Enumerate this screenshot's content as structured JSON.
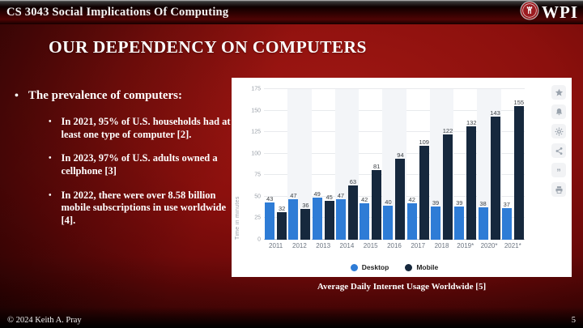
{
  "header": {
    "course_title": "CS 3043 Social Implications Of Computing",
    "logo_text": "WPI"
  },
  "slide": {
    "title": "OUR DEPENDENCY ON COMPUTERS",
    "bullets": {
      "main": "The prevalence of computers:",
      "sub": [
        "In 2021, 95% of U.S. households had at least one type of computer [2].",
        "In 2023, 97% of U.S. adults owned a cellphone [3]",
        "In 2022, there were over 8.58 billion mobile subscriptions in use worldwide [4]."
      ]
    },
    "chart_caption": "Average Daily Internet Usage Worldwide [5]"
  },
  "footer": {
    "copyright": "© 2024 Keith A. Pray",
    "page_number": "5"
  },
  "chart_data": {
    "type": "bar",
    "title": "",
    "xlabel": "",
    "ylabel": "Time in minutes",
    "categories": [
      "2011",
      "2012",
      "2013",
      "2014",
      "2015",
      "2016",
      "2017",
      "2018",
      "2019*",
      "2020*",
      "2021*"
    ],
    "series": [
      {
        "name": "Desktop",
        "color": "#2e7cd6",
        "values": [
          43,
          47,
          49,
          47,
          42,
          40,
          42,
          39,
          39,
          38,
          37
        ]
      },
      {
        "name": "Mobile",
        "color": "#16283d",
        "values": [
          32,
          36,
          45,
          63,
          81,
          94,
          109,
          122,
          132,
          143,
          155
        ]
      }
    ],
    "ylim": [
      0,
      175
    ],
    "yticks": [
      0,
      25,
      50,
      75,
      100,
      125,
      150,
      175
    ],
    "grid": true,
    "legend_position": "bottom",
    "toolbar_icons": [
      "star",
      "bell",
      "gear",
      "share",
      "quote",
      "printer"
    ]
  }
}
